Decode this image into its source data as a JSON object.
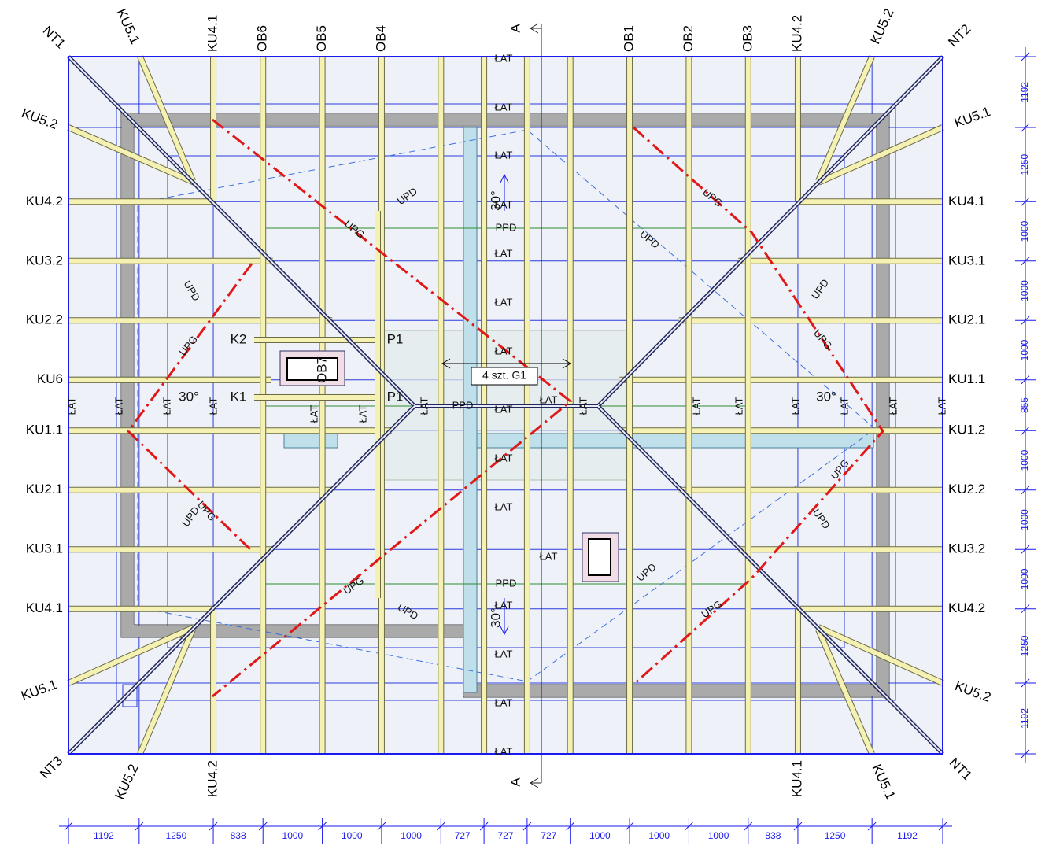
{
  "top_labels": [
    "NT1",
    "KU5.1",
    "KU4.1",
    "OB6",
    "OB5",
    "OB4",
    "A",
    "OB1",
    "OB2",
    "OB3",
    "KU4.2",
    "KU5.2",
    "NT2"
  ],
  "left_labels": [
    "KU5.2",
    "KU4.2",
    "KU3.2",
    "KU2.2",
    "KU6",
    "KU1.1",
    "KU2.1",
    "KU3.1",
    "KU4.1",
    "KU5.1",
    "NT3"
  ],
  "right_labels": [
    "KU5.1",
    "KU4.1",
    "KU3.1",
    "KU2.1",
    "KU1.1",
    "KU1.2",
    "KU2.2",
    "KU3.2",
    "KU4.2",
    "KU5.2"
  ],
  "bottom_labels": [
    "KU5.2",
    "KU4.2",
    "A",
    "KU4.1",
    "KU5.1",
    "NT1"
  ],
  "right_dimensions": [
    1192,
    1250,
    1000,
    1000,
    1000,
    855,
    1000,
    1000,
    1000,
    1250,
    1192
  ],
  "bottom_dimensions": [
    1192,
    1250,
    838,
    1000,
    1000,
    1000,
    727,
    727,
    727,
    1000,
    1000,
    1000,
    838,
    1250,
    1192
  ],
  "plan_labels": [
    "ŁAT",
    "ŁAT",
    "ŁAT",
    "ŁAT",
    "ŁAT",
    "ŁAT",
    "ŁAT",
    "ŁAT",
    "ŁAT",
    "ŁAT",
    "ŁAT",
    "ŁAT",
    "ŁAT",
    "ŁAT",
    "ŁAT",
    "ŁAT",
    "ŁAT",
    "ŁAT",
    "ŁAT",
    "ŁAT",
    "ŁAT",
    "ŁAT",
    "ŁAT",
    "ŁAT",
    "ŁAT",
    "ŁAT",
    "ŁAT",
    "ŁAT",
    "ŁAT",
    "ŁAT",
    "PPD",
    "PPD",
    "PPD",
    "UPD",
    "UPD",
    "UPD",
    "UPD",
    "UPD",
    "UPD",
    "UPD",
    "UPD",
    "UPG",
    "UPG",
    "UPG",
    "UPG",
    "UPG",
    "UPG",
    "UPG",
    "UPG",
    "30°",
    "30°",
    "30°",
    "30°",
    "K1",
    "K2",
    "P1",
    "P1",
    "OB7",
    "4 szt. G1"
  ]
}
